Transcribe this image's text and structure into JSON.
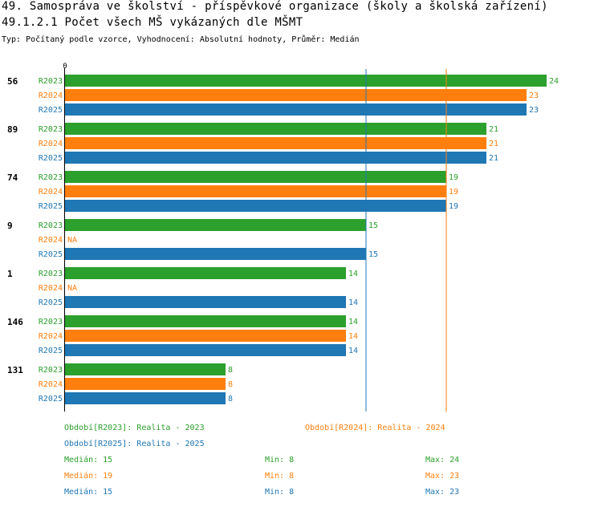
{
  "header": {
    "title_line1": "49. Samospráva ve školství - příspěvkové organizace (školy a školská zařízení)",
    "title_line2": "49.1.2.1 Počet všech MŠ vykázaných dle MŠMT",
    "subtitle": "Typ: Počítaný podle vzorce, Vyhodnocení: Absolutní hodnoty, Průměr: Medián"
  },
  "colors": {
    "R2023": "#2ca02c",
    "R2024": "#ff7f0e",
    "R2025": "#1f77b4"
  },
  "chart_data": {
    "type": "bar",
    "orientation": "horizontal",
    "axis_zero_label": "0",
    "xlim": [
      0,
      24
    ],
    "na_label": "NA",
    "series_names": [
      "R2023",
      "R2024",
      "R2025"
    ],
    "groups": [
      {
        "label": "56",
        "values": [
          24,
          23,
          23
        ]
      },
      {
        "label": "89",
        "values": [
          21,
          21,
          21
        ]
      },
      {
        "label": "74",
        "values": [
          19,
          19,
          19
        ]
      },
      {
        "label": "9",
        "values": [
          15,
          null,
          15
        ]
      },
      {
        "label": "1",
        "values": [
          14,
          null,
          14
        ]
      },
      {
        "label": "146",
        "values": [
          14,
          14,
          14
        ]
      },
      {
        "label": "131",
        "values": [
          8,
          8,
          8
        ]
      }
    ],
    "median_lines": [
      {
        "series": "R2023",
        "value": 15
      },
      {
        "series": "R2024",
        "value": 19
      },
      {
        "series": "R2025",
        "value": 15
      }
    ]
  },
  "legend": {
    "periods": [
      {
        "series": "R2023",
        "label": "Období[R2023]: Realita - 2023"
      },
      {
        "series": "R2024",
        "label": "Období[R2024]: Realita - 2024"
      },
      {
        "series": "R2025",
        "label": "Období[R2025]: Realita - 2025"
      }
    ],
    "stats": [
      {
        "series": "R2023",
        "median": "Medián: 15",
        "min": "Min: 8",
        "max": "Max: 24"
      },
      {
        "series": "R2024",
        "median": "Medián: 19",
        "min": "Min: 8",
        "max": "Max: 23"
      },
      {
        "series": "R2025",
        "median": "Medián: 15",
        "min": "Min: 8",
        "max": "Max: 23"
      }
    ]
  }
}
